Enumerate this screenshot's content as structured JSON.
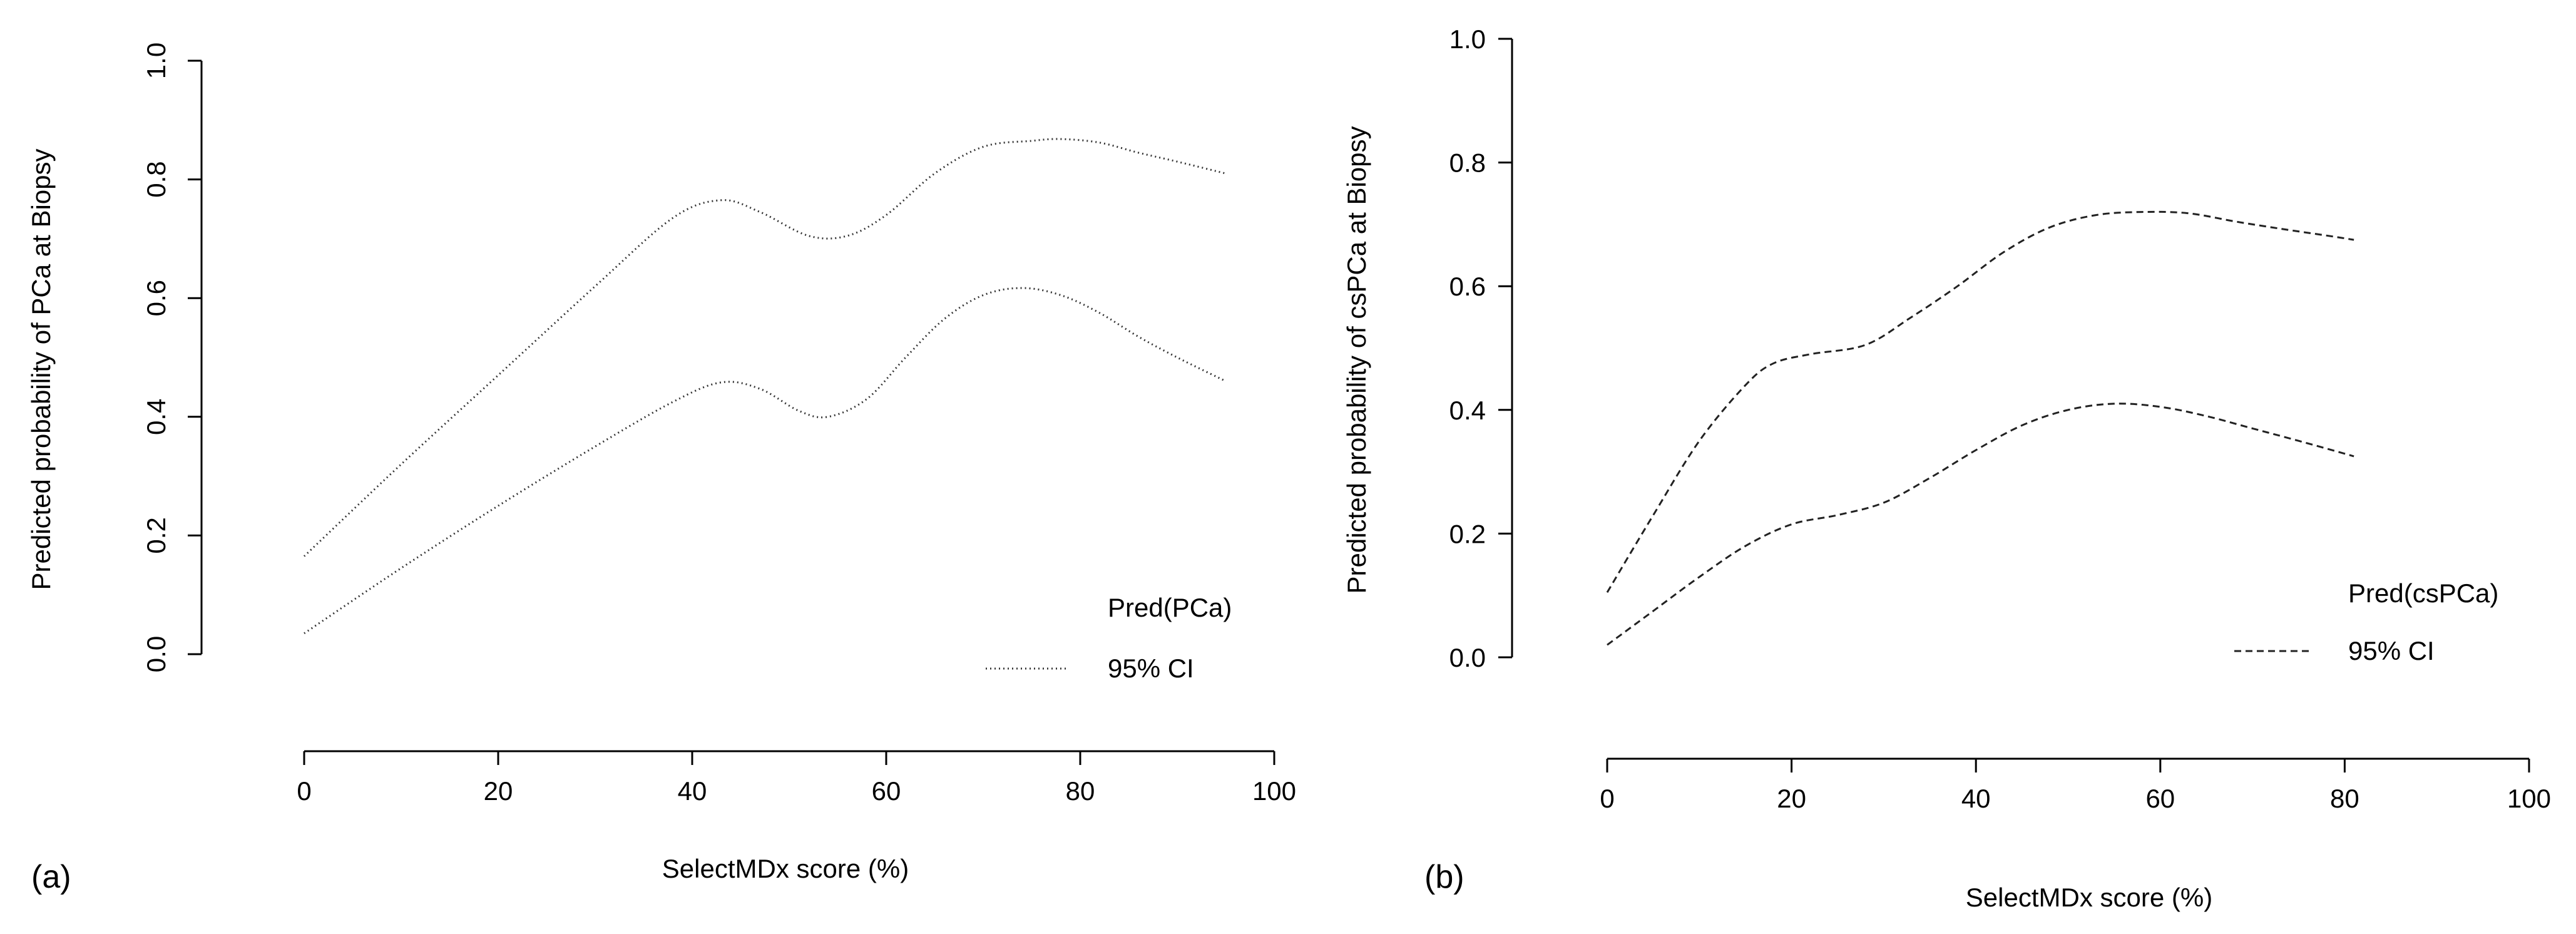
{
  "chart_data": [
    {
      "type": "line",
      "panel_label": "(a)",
      "xlabel": "SelectMDx score (%)",
      "ylabel": "Predicted probability of PCa at Biopsy",
      "xlim": [
        0,
        100
      ],
      "ylim": [
        0,
        1
      ],
      "xticks": [
        "0",
        "20",
        "40",
        "60",
        "80",
        "100"
      ],
      "yticks": [
        "0.0",
        "0.2",
        "0.4",
        "0.6",
        "0.8",
        "1.0"
      ],
      "legend": {
        "title": "Pred(PCa)",
        "entry": "95% CI",
        "placement": "bottom-right"
      },
      "series": [
        {
          "name": "95% CI upper",
          "x": [
            0,
            10,
            20,
            30,
            38,
            43,
            47,
            52,
            56,
            60,
            65,
            70,
            75,
            78,
            82,
            86,
            90,
            95
          ],
          "y": [
            0.165,
            0.32,
            0.47,
            0.62,
            0.735,
            0.765,
            0.745,
            0.705,
            0.705,
            0.74,
            0.81,
            0.855,
            0.865,
            0.868,
            0.862,
            0.845,
            0.83,
            0.81
          ]
        },
        {
          "name": "95% CI lower",
          "x": [
            0,
            10,
            20,
            30,
            38,
            43,
            47,
            51,
            54,
            58,
            62,
            66,
            70,
            74,
            78,
            82,
            86,
            90,
            95
          ],
          "y": [
            0.035,
            0.145,
            0.25,
            0.35,
            0.425,
            0.458,
            0.447,
            0.41,
            0.4,
            0.43,
            0.5,
            0.565,
            0.605,
            0.617,
            0.605,
            0.575,
            0.535,
            0.5,
            0.46
          ]
        }
      ]
    },
    {
      "type": "line",
      "panel_label": "(b)",
      "xlabel": "SelectMDx score (%)",
      "ylabel": "Predicted probability of csPCa at Biopsy",
      "xlim": [
        0,
        100
      ],
      "ylim": [
        0,
        1
      ],
      "xticks": [
        "0",
        "20",
        "40",
        "60",
        "80",
        "100"
      ],
      "yticks": [
        "0.0",
        "0.2",
        "0.4",
        "0.6",
        "0.8",
        "1.0"
      ],
      "legend": {
        "title": "Pred(csPCa)",
        "entry": "95% CI",
        "placement": "bottom-right"
      },
      "series": [
        {
          "name": "95% CI upper",
          "x": [
            0,
            5,
            10,
            15,
            18,
            22,
            28,
            33,
            38,
            43,
            48,
            53,
            58,
            63,
            68,
            73,
            78,
            81
          ],
          "y": [
            0.105,
            0.23,
            0.35,
            0.44,
            0.475,
            0.49,
            0.505,
            0.55,
            0.6,
            0.655,
            0.695,
            0.715,
            0.72,
            0.718,
            0.705,
            0.693,
            0.682,
            0.675
          ]
        },
        {
          "name": "95% CI lower",
          "x": [
            0,
            5,
            10,
            15,
            20,
            25,
            30,
            35,
            40,
            45,
            50,
            55,
            60,
            65,
            70,
            75,
            81
          ],
          "y": [
            0.02,
            0.075,
            0.13,
            0.18,
            0.215,
            0.23,
            0.25,
            0.29,
            0.335,
            0.375,
            0.4,
            0.41,
            0.405,
            0.39,
            0.37,
            0.35,
            0.325
          ]
        }
      ]
    }
  ]
}
